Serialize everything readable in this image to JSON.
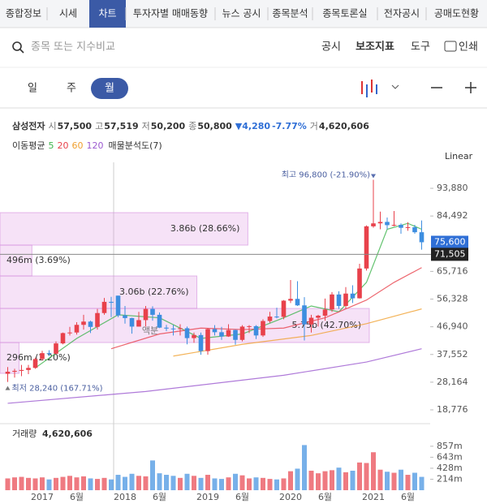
{
  "tabs": [
    "종합정보",
    "시세",
    "차트",
    "투자자별 매매동향",
    "뉴스 공시",
    "종목분석",
    "종목토론실",
    "전자공시",
    "공매도현황"
  ],
  "toolbar": {
    "search_placeholder": "종목 또는 지수비교",
    "items": [
      "공시",
      "보조지표",
      "도구",
      "인쇄"
    ]
  },
  "periods": [
    "일",
    "주",
    "월"
  ],
  "stock": {
    "name": "삼성전자",
    "open_label": "시",
    "open": "57,500",
    "high_label": "고",
    "high": "57,519",
    "low_label": "저",
    "low": "50,200",
    "close_label": "종",
    "close": "50,800",
    "change": "▼4,280",
    "change_pct": "-7.77%",
    "volume_label": "거",
    "volume": "4,620,606"
  },
  "indicators": {
    "ma_label": "이동평균",
    "ma": [
      {
        "name": "5",
        "color": "#3cb44b"
      },
      {
        "name": "20",
        "color": "#e8414b"
      },
      {
        "name": "60",
        "color": "#f0a030"
      },
      {
        "name": "120",
        "color": "#9b59d0"
      }
    ],
    "profile_label": "매물분석도(7)"
  },
  "scale_label": "Linear",
  "volume_title": "거래량",
  "volume_total": "4,620,606",
  "chart_data": {
    "type": "candlestick",
    "categories": [
      null,
      null,
      null,
      null,
      null,
      "2017",
      null,
      null,
      null,
      null,
      "6월",
      null,
      null,
      null,
      null,
      null,
      null,
      "2018",
      null,
      null,
      null,
      null,
      "6월",
      null,
      null,
      null,
      null,
      null,
      null,
      "2019",
      null,
      null,
      null,
      null,
      "6월",
      null,
      null,
      null,
      null,
      null,
      null,
      "2020",
      null,
      null,
      null,
      null,
      "6월",
      null,
      null,
      null,
      null,
      null,
      null,
      "2021",
      null,
      null,
      null,
      null,
      "6월",
      null,
      null
    ],
    "candles": [
      [
        31000,
        33300,
        28240,
        31700
      ],
      [
        31700,
        32700,
        29700,
        32000
      ],
      [
        32000,
        34000,
        30200,
        32300
      ],
      [
        32300,
        34000,
        30900,
        33000
      ],
      [
        33000,
        36500,
        32700,
        36000
      ],
      [
        36000,
        38800,
        35500,
        38000
      ],
      [
        38000,
        39000,
        37000,
        37800
      ],
      [
        37800,
        42000,
        37600,
        41300
      ],
      [
        41300,
        45000,
        41000,
        44800
      ],
      [
        44800,
        46900,
        44000,
        45000
      ],
      [
        45000,
        48500,
        44300,
        47600
      ],
      [
        47600,
        51000,
        46000,
        48700
      ],
      [
        48700,
        49000,
        44800,
        46900
      ],
      [
        46900,
        53000,
        46000,
        51600
      ],
      [
        51600,
        56700,
        51000,
        55400
      ],
      [
        55400,
        57100,
        50200,
        55080
      ],
      [
        57500,
        57519,
        50200,
        50800
      ],
      [
        50800,
        54000,
        48000,
        49900
      ],
      [
        49900,
        50000,
        44600,
        47000
      ],
      [
        47000,
        52000,
        47000,
        49200
      ],
      [
        49200,
        54000,
        47000,
        53000
      ],
      [
        53000,
        53900,
        49000,
        51000
      ],
      [
        51000,
        51800,
        46500,
        46650
      ],
      [
        46650,
        47600,
        45500,
        46350
      ],
      [
        46350,
        47600,
        44000,
        46150
      ],
      [
        46150,
        47800,
        44000,
        46450
      ],
      [
        46450,
        47000,
        41000,
        43100
      ],
      [
        43100,
        45000,
        41500,
        44150
      ],
      [
        44150,
        45000,
        37450,
        38700
      ],
      [
        38700,
        46500,
        37500,
        46150
      ],
      [
        46150,
        47500,
        44000,
        45100
      ],
      [
        45100,
        46900,
        42500,
        43650
      ],
      [
        43650,
        47800,
        43500,
        45850
      ],
      [
        45850,
        46000,
        40850,
        42500
      ],
      [
        42500,
        47500,
        42000,
        47000
      ],
      [
        47000,
        47500,
        44800,
        47150
      ],
      [
        47150,
        47500,
        42800,
        44000
      ],
      [
        44000,
        49500,
        43500,
        48900
      ],
      [
        48900,
        52000,
        48300,
        50400
      ],
      [
        50400,
        53400,
        49800,
        50300
      ],
      [
        50300,
        56000,
        49500,
        55800
      ],
      [
        55800,
        62800,
        55000,
        56400
      ],
      [
        56400,
        62400,
        54000,
        54200
      ],
      [
        54200,
        57000,
        42300,
        47750
      ],
      [
        47750,
        51000,
        45000,
        50000
      ],
      [
        50000,
        51000,
        47000,
        50700
      ],
      [
        50700,
        56500,
        49000,
        52800
      ],
      [
        52800,
        58700,
        52000,
        57900
      ],
      [
        57900,
        59000,
        53000,
        54000
      ],
      [
        54000,
        60400,
        53000,
        58200
      ],
      [
        58200,
        61000,
        55000,
        56600
      ],
      [
        56600,
        68300,
        56500,
        66700
      ],
      [
        66700,
        81300,
        66000,
        81000
      ],
      [
        81000,
        96800,
        80500,
        82000
      ],
      [
        82000,
        86000,
        80000,
        82500
      ],
      [
        82500,
        84000,
        80000,
        81400
      ],
      [
        81400,
        86200,
        81000,
        81500
      ],
      [
        81500,
        82000,
        78500,
        80500
      ],
      [
        80500,
        82400,
        79500,
        80700
      ],
      [
        80700,
        81500,
        78500,
        79000
      ],
      [
        79000,
        83000,
        73100,
        75600
      ]
    ],
    "up_color": "#e8414b",
    "down_color": "#3d8ee0",
    "volume": [
      230,
      250,
      260,
      240,
      230,
      250,
      210,
      240,
      260,
      280,
      250,
      270,
      230,
      220,
      240,
      210,
      300,
      260,
      320,
      280,
      270,
      580,
      330,
      300,
      280,
      240,
      320,
      280,
      240,
      300,
      230,
      220,
      250,
      320,
      290,
      230,
      250,
      240,
      220,
      210,
      230,
      370,
      420,
      880,
      380,
      330,
      370,
      390,
      440,
      350,
      380,
      540,
      530,
      740,
      400,
      360,
      340,
      400,
      300,
      340,
      260
    ],
    "ylim": [
      14650,
      102700
    ],
    "yticks": [
      {
        "value": 93880,
        "label": "93,880"
      },
      {
        "value": 84492,
        "label": "84,492"
      },
      {
        "value": 65716,
        "label": "65,716"
      },
      {
        "value": 56328,
        "label": "56,328"
      },
      {
        "value": 46940,
        "label": "46,940"
      },
      {
        "value": 37552,
        "label": "37,552"
      },
      {
        "value": 28164,
        "label": "28,164"
      },
      {
        "value": 18776,
        "label": "18,776"
      }
    ],
    "vlim": [
      0,
      1250
    ],
    "vticks": [
      {
        "value": 857,
        "label": "857m"
      },
      {
        "value": 643,
        "label": "643m"
      },
      {
        "value": 428,
        "label": "428m"
      },
      {
        "value": 214,
        "label": "214m"
      }
    ],
    "moving_averages": [
      {
        "x": [
          4,
          10,
          16,
          22,
          28,
          34,
          40,
          44,
          48,
          52,
          55,
          58,
          60
        ],
        "values": [
          33000,
          43000,
          51000,
          50000,
          43000,
          44500,
          50000,
          54000,
          52000,
          62000,
          80000,
          82000,
          80000
        ]
      },
      {
        "x": [
          15,
          22,
          28,
          34,
          40,
          46,
          52,
          56,
          60
        ],
        "values": [
          39500,
          44500,
          46500,
          46000,
          46500,
          50000,
          56000,
          62000,
          67000
        ]
      },
      {
        "x": [
          24,
          34,
          44,
          52,
          60
        ],
        "values": [
          37000,
          41000,
          44000,
          48000,
          53000
        ]
      },
      {
        "x": [
          0,
          20,
          40,
          52,
          60
        ],
        "values": [
          21000,
          25000,
          30500,
          35000,
          39500
        ]
      }
    ],
    "volume_profile": [
      {
        "low": 74630,
        "high": 85640,
        "pct": 28.66,
        "label": "3.86b (28.66%)"
      },
      {
        "low": 64170,
        "high": 74630,
        "pct": 3.69,
        "label": "496m (3.69%)"
      },
      {
        "low": 53160,
        "high": 64170,
        "pct": 22.76,
        "label": "3.06b (22.76%)"
      },
      {
        "low": 41600,
        "high": 53160,
        "pct": 42.7,
        "label": "5.75b (42.70%)"
      },
      {
        "low": 31150,
        "high": 41600,
        "pct": 2.2,
        "label": "296m (2.20%)"
      }
    ],
    "high_marker": {
      "value": 96800,
      "label": "최고 96,800 (-21.90%)"
    },
    "low_marker": {
      "value": 28240,
      "label": "최저 28,240 (167.71%)"
    },
    "last_price": {
      "value": 75600,
      "label": "75,600"
    },
    "crosshair_price": {
      "value": 71505,
      "label": "71,505"
    },
    "split_marker": {
      "label": "액분"
    }
  }
}
